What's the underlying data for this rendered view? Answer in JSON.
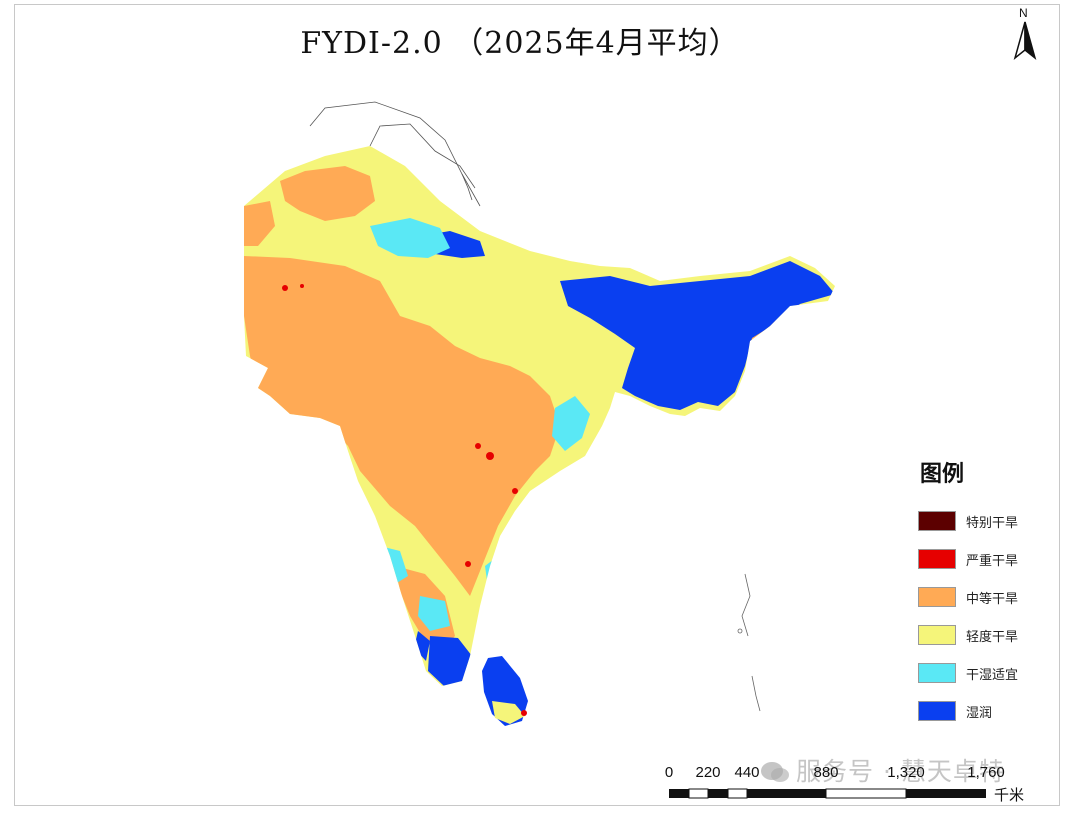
{
  "title": "FYDI-2.0 （2025年4月平均）",
  "north_arrow": {
    "label": "N",
    "icon": "north-arrow-icon"
  },
  "legend": {
    "title": "图例",
    "items": [
      {
        "label": "特别干旱",
        "color": "#5c0000"
      },
      {
        "label": "严重干旱",
        "color": "#e60000"
      },
      {
        "label": "中等干旱",
        "color": "#ffaa55"
      },
      {
        "label": "轻度干旱",
        "color": "#f5f57a"
      },
      {
        "label": "干湿适宜",
        "color": "#5ae8f5"
      },
      {
        "label": "湿润",
        "color": "#0a3ff0"
      }
    ]
  },
  "scale_bar": {
    "ticks": [
      "0",
      "220",
      "440",
      "880",
      "1,320",
      "1,760"
    ],
    "unit": "千米"
  },
  "watermark": {
    "text": "服务号 · 慧天卓特",
    "icon": "wechat-icon"
  }
}
